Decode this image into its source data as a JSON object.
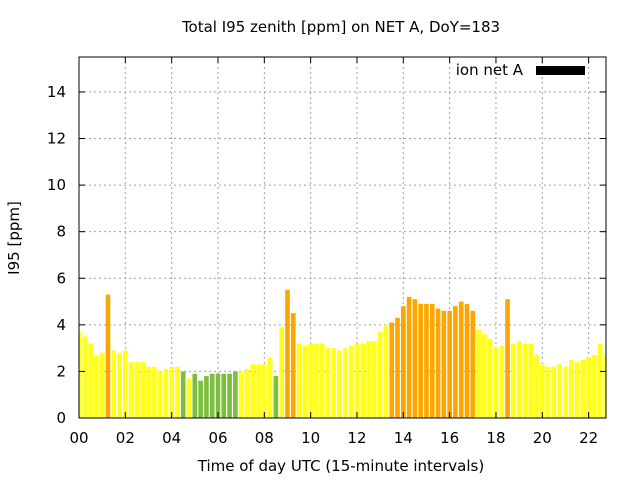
{
  "chart_data": {
    "type": "bar",
    "title": "Total I95 zenith [ppm] on NET A, DoY=183",
    "xlabel": "Time of day UTC (15-minute intervals)",
    "ylabel": "I95 [ppm]",
    "xlim": [
      0,
      22.75
    ],
    "ylim": [
      0,
      15.5
    ],
    "x_ticks": [
      0,
      2,
      4,
      6,
      8,
      10,
      12,
      14,
      16,
      18,
      20,
      22
    ],
    "x_tick_labels": [
      "00",
      "02",
      "04",
      "06",
      "08",
      "10",
      "12",
      "14",
      "16",
      "18",
      "20",
      "22"
    ],
    "y_ticks": [
      0,
      2,
      4,
      6,
      8,
      10,
      12,
      14
    ],
    "y_tick_labels": [
      "0",
      "2",
      "4",
      "6",
      "8",
      "10",
      "12",
      "14"
    ],
    "grid": true,
    "legend": {
      "position": "top-right",
      "label": "ion net A",
      "color": "#000000"
    },
    "colors": {
      "low": "#7cbf3f",
      "medium": "#ffff1a",
      "high": "#ffa500"
    },
    "series": [
      {
        "x": [
          0.0,
          0.25,
          0.5,
          0.75,
          1.0,
          1.25,
          1.5,
          1.75,
          2.0,
          2.25,
          2.5,
          2.75,
          3.0,
          3.25,
          3.5,
          3.75,
          4.0,
          4.25,
          4.5,
          4.75,
          5.0,
          5.25,
          5.5,
          5.75,
          6.0,
          6.25,
          6.5,
          6.75,
          7.0,
          7.25,
          7.5,
          7.75,
          8.0,
          8.25,
          8.5,
          8.75,
          9.0,
          9.25,
          9.5,
          9.75,
          10.0,
          10.25,
          10.5,
          10.75,
          11.0,
          11.25,
          11.5,
          11.75,
          12.0,
          12.25,
          12.5,
          12.75,
          13.0,
          13.25,
          13.5,
          13.75,
          14.0,
          14.25,
          14.5,
          14.75,
          15.0,
          15.25,
          15.5,
          15.75,
          16.0,
          16.25,
          16.5,
          16.75,
          17.0,
          17.25,
          17.5,
          17.75,
          18.0,
          18.25,
          18.5,
          18.75,
          19.0,
          19.25,
          19.5,
          19.75,
          20.0,
          20.25,
          20.5,
          20.75,
          21.0,
          21.25,
          21.5,
          21.75,
          22.0,
          22.25,
          22.5,
          22.75
        ],
        "values": [
          3.7,
          3.5,
          3.2,
          2.7,
          2.8,
          5.3,
          2.9,
          2.8,
          2.9,
          2.4,
          2.4,
          2.4,
          2.2,
          2.2,
          2.0,
          2.1,
          2.2,
          2.2,
          2.0,
          1.7,
          1.9,
          1.6,
          1.8,
          1.9,
          1.9,
          1.9,
          1.9,
          2.0,
          2.0,
          2.1,
          2.3,
          2.3,
          2.3,
          2.6,
          1.8,
          3.9,
          5.5,
          4.5,
          3.2,
          3.1,
          3.2,
          3.2,
          3.2,
          3.0,
          3.0,
          2.9,
          3.0,
          3.1,
          3.2,
          3.2,
          3.3,
          3.3,
          3.7,
          4.0,
          4.1,
          4.3,
          4.8,
          5.2,
          5.1,
          4.9,
          4.9,
          4.9,
          4.7,
          4.6,
          4.6,
          4.8,
          5.0,
          4.9,
          4.6,
          3.8,
          3.6,
          3.4,
          3.0,
          3.1,
          5.1,
          3.2,
          3.3,
          3.2,
          3.2,
          2.7,
          2.3,
          2.2,
          2.2,
          2.3,
          2.2,
          2.5,
          2.4,
          2.5,
          2.6,
          2.7,
          3.2,
          2.7
        ],
        "levels": [
          "medium",
          "medium",
          "medium",
          "medium",
          "medium",
          "high",
          "medium",
          "medium",
          "medium",
          "medium",
          "medium",
          "medium",
          "medium",
          "medium",
          "medium",
          "medium",
          "medium",
          "medium",
          "low",
          "medium",
          "low",
          "low",
          "low",
          "low",
          "low",
          "low",
          "low",
          "low",
          "medium",
          "medium",
          "medium",
          "medium",
          "medium",
          "medium",
          "low",
          "medium",
          "high",
          "high",
          "medium",
          "medium",
          "medium",
          "medium",
          "medium",
          "medium",
          "medium",
          "medium",
          "medium",
          "medium",
          "medium",
          "medium",
          "medium",
          "medium",
          "medium",
          "medium",
          "high",
          "high",
          "high",
          "high",
          "high",
          "high",
          "high",
          "high",
          "high",
          "high",
          "high",
          "high",
          "high",
          "high",
          "high",
          "medium",
          "medium",
          "medium",
          "medium",
          "medium",
          "high",
          "medium",
          "medium",
          "medium",
          "medium",
          "medium",
          "medium",
          "medium",
          "medium",
          "medium",
          "medium",
          "medium",
          "medium",
          "medium",
          "medium",
          "medium",
          "medium",
          "medium"
        ]
      }
    ]
  }
}
